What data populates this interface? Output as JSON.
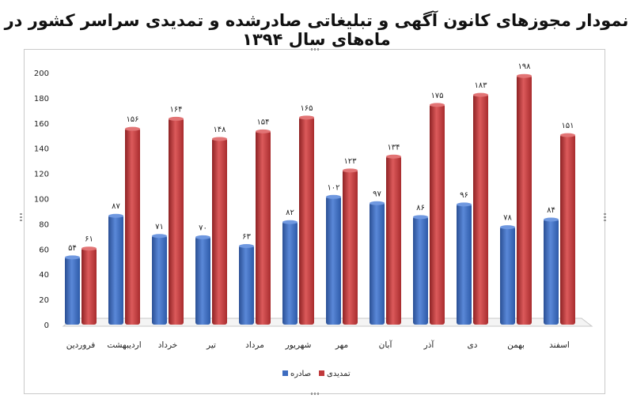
{
  "chart_data": {
    "type": "bar",
    "title": "نمودار مجوزهای کانون آگهی و تبلیغاتی صادرشده و تمدیدی سراسر کشور در ماه‌های سال ۱۳۹۴",
    "xlabel": "",
    "ylabel": "",
    "ylim": [
      0,
      200
    ],
    "yticks": [
      0,
      20,
      40,
      60,
      80,
      100,
      120,
      140,
      160,
      180,
      200
    ],
    "grid": false,
    "legend_position": "bottom",
    "categories": [
      "فروردین",
      "اردیبهشت",
      "خرداد",
      "تیر",
      "مرداد",
      "شهریور",
      "مهر",
      "آبان",
      "آذر",
      "دی",
      "بهمن",
      "اسفند"
    ],
    "series": [
      {
        "name": "صادره",
        "color": "#3d6cc0",
        "values": [
          54,
          87,
          71,
          70,
          63,
          82,
          102,
          97,
          86,
          96,
          78,
          84
        ],
        "labels": [
          "۵۴",
          "۸۷",
          "۷۱",
          "۷۰",
          "۶۳",
          "۸۲",
          "۱۰۲",
          "۹۷",
          "۸۶",
          "۹۶",
          "۷۸",
          "۸۴"
        ]
      },
      {
        "name": "تمدیدی",
        "color": "#c0393b",
        "values": [
          61,
          156,
          164,
          148,
          154,
          165,
          123,
          134,
          175,
          183,
          198,
          151
        ],
        "labels": [
          "۶۱",
          "۱۵۶",
          "۱۶۴",
          "۱۴۸",
          "۱۵۴",
          "۱۶۵",
          "۱۲۳",
          "۱۳۴",
          "۱۷۵",
          "۱۸۳",
          "۱۹۸",
          "۱۵۱"
        ]
      }
    ]
  }
}
